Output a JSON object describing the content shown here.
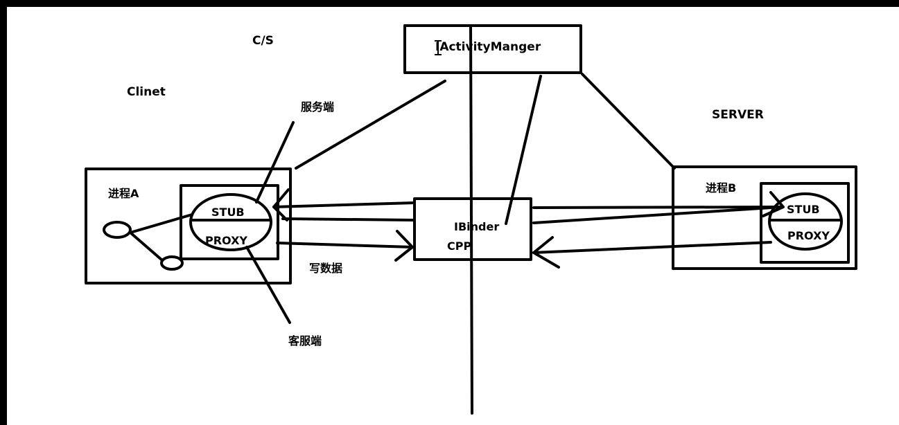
{
  "labels": {
    "cs": "C/S",
    "client": "Clinet",
    "server": "SERVER",
    "activity_manager": "IActivityManger",
    "process_a": "进程A",
    "process_b": "进程B",
    "stub_a": "STUB",
    "proxy_a": "PROXY",
    "stub_b": "STUB",
    "proxy_b": "PROXY",
    "ibinder": "IBinder",
    "cpp": "CPP",
    "server_side": "服务端",
    "client_side": "客服端",
    "write_data": "写数据"
  },
  "colors": {
    "frame": "#000000",
    "canvas": "#ffffff",
    "ink": "#000000"
  }
}
